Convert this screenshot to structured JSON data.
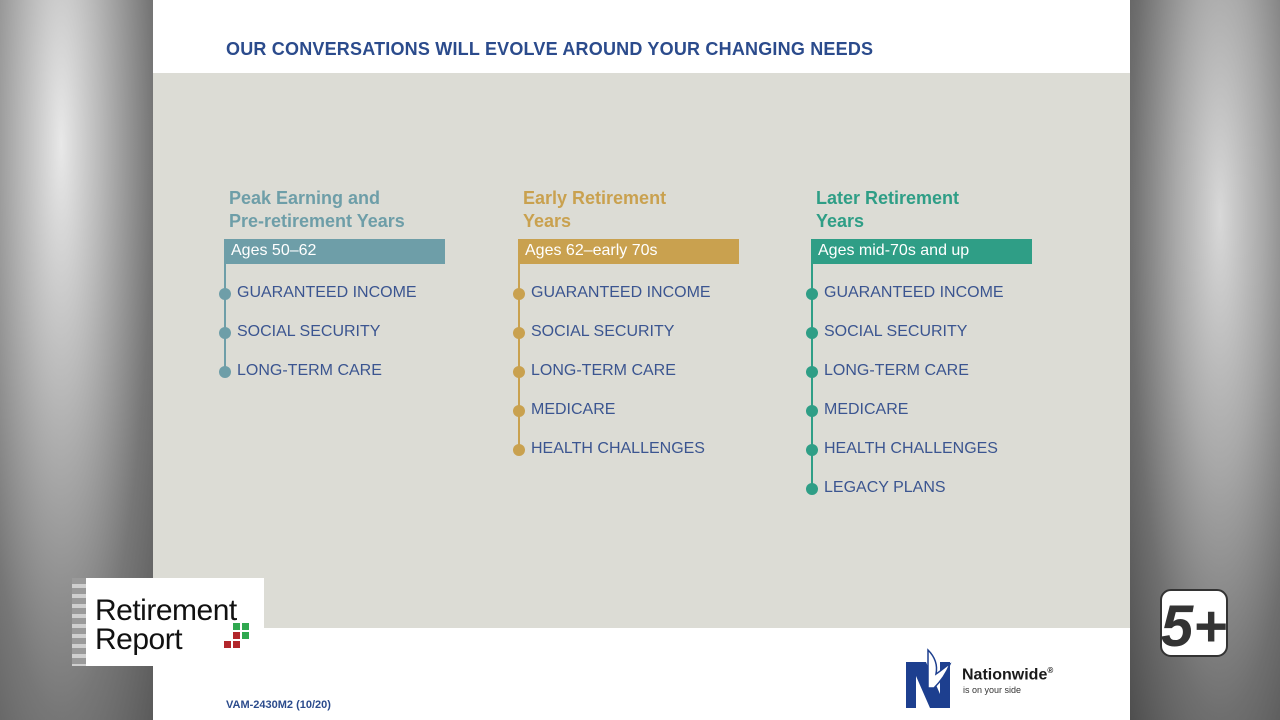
{
  "slide": {
    "title": "OUR CONVERSATIONS WILL EVOLVE AROUND YOUR CHANGING NEEDS",
    "footer_code": "VAM-2430M2 (10/20)"
  },
  "columns": [
    {
      "heading": "Peak Earning and\nPre-retirement Years",
      "ages": "Ages 50–62",
      "color": "#6e9ea8",
      "items": [
        "GUARANTEED INCOME",
        "SOCIAL SECURITY",
        "LONG-TERM CARE"
      ]
    },
    {
      "heading": "Early Retirement\nYears",
      "ages": "Ages 62–early 70s",
      "color": "#c9a14f",
      "items": [
        "GUARANTEED INCOME",
        "SOCIAL SECURITY",
        "LONG-TERM CARE",
        "MEDICARE",
        "HEALTH CHALLENGES"
      ]
    },
    {
      "heading": "Later Retirement\nYears",
      "ages": "Ages mid-70s and up",
      "color": "#2f9e86",
      "items": [
        "GUARANTEED INCOME",
        "SOCIAL SECURITY",
        "LONG-TERM CARE",
        "MEDICARE",
        "HEALTH CHALLENGES",
        "LEGACY PLANS"
      ]
    }
  ],
  "overlay": {
    "show_title_line1": "Retirement",
    "show_title_line2": "Report",
    "brand_name": "Nationwide",
    "brand_mark": "®",
    "brand_tagline": "is on your side",
    "channel_label": "5+"
  }
}
